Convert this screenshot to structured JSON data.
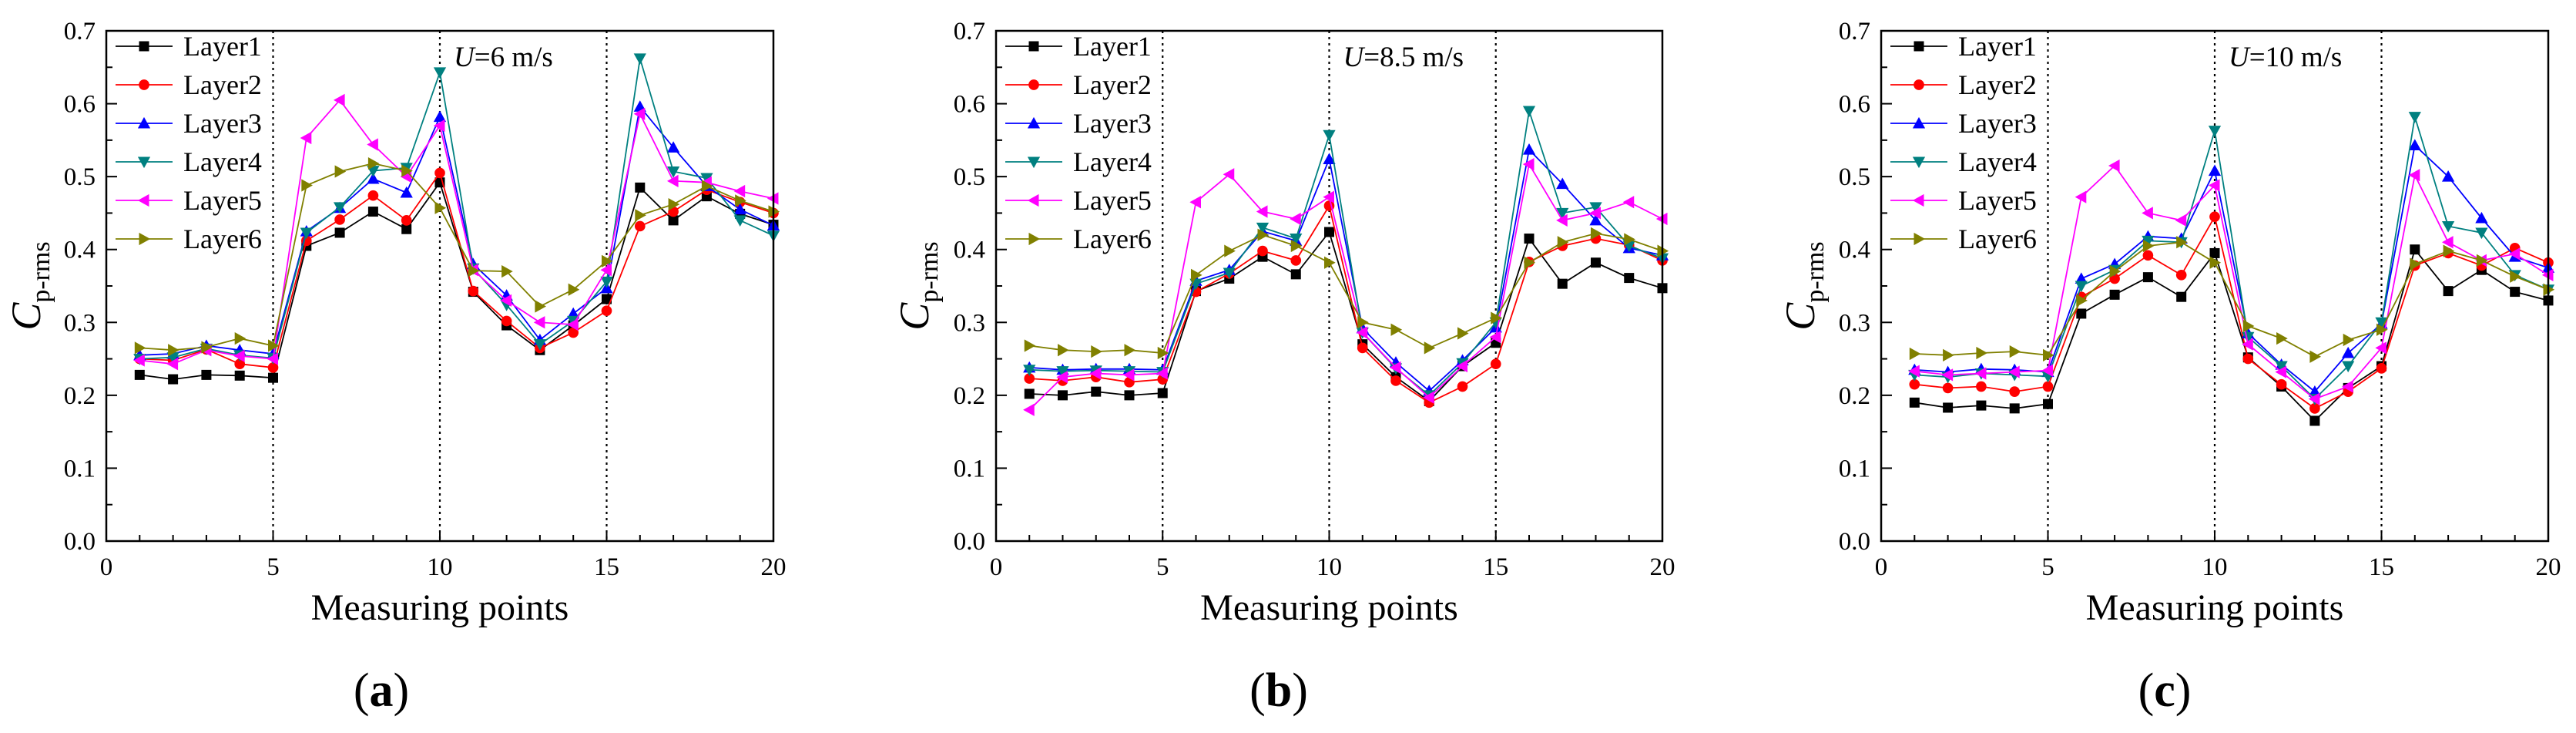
{
  "chart_data": [
    {
      "type": "line",
      "panel_label": "a",
      "annotation": {
        "var": "U",
        "text": "=6 m/s"
      },
      "xlabel": "Measuring points",
      "ylabel": {
        "main": "C",
        "sub": "p-rms"
      },
      "xlim": [
        0,
        20
      ],
      "ylim": [
        0.0,
        0.7
      ],
      "xticks": [
        0,
        5,
        10,
        15,
        20
      ],
      "yticks": [
        "0.0",
        "0.1",
        "0.2",
        "0.3",
        "0.4",
        "0.5",
        "0.6",
        "0.7"
      ],
      "vlines": [
        5,
        10,
        15
      ],
      "legend_position": "top-left",
      "x": [
        1,
        2,
        3,
        4,
        5,
        6,
        7,
        8,
        9,
        10,
        11,
        12,
        13,
        14,
        15,
        16,
        17,
        18,
        19,
        20
      ],
      "series": [
        {
          "name": "Layer1",
          "values": [
            0.228,
            0.222,
            0.228,
            0.227,
            0.224,
            0.405,
            0.423,
            0.452,
            0.428,
            0.492,
            0.342,
            0.296,
            0.262,
            0.296,
            0.332,
            0.485,
            0.44,
            0.473,
            0.449,
            0.434
          ]
        },
        {
          "name": "Layer2",
          "values": [
            0.25,
            0.248,
            0.263,
            0.243,
            0.238,
            0.412,
            0.441,
            0.474,
            0.44,
            0.505,
            0.343,
            0.302,
            0.265,
            0.286,
            0.316,
            0.432,
            0.452,
            0.482,
            0.465,
            0.45
          ]
        },
        {
          "name": "Layer3",
          "values": [
            0.255,
            0.257,
            0.268,
            0.262,
            0.257,
            0.425,
            0.457,
            0.497,
            0.478,
            0.582,
            0.38,
            0.337,
            0.276,
            0.312,
            0.347,
            0.596,
            0.54,
            0.487,
            0.455,
            0.433
          ]
        },
        {
          "name": "Layer4",
          "values": [
            0.25,
            0.252,
            0.264,
            0.255,
            0.251,
            0.423,
            0.458,
            0.508,
            0.512,
            0.643,
            0.374,
            0.324,
            0.27,
            0.302,
            0.356,
            0.662,
            0.507,
            0.498,
            0.44,
            0.419
          ]
        },
        {
          "name": "Layer5",
          "values": [
            0.248,
            0.243,
            0.262,
            0.254,
            0.25,
            0.553,
            0.605,
            0.544,
            0.5,
            0.57,
            0.372,
            0.33,
            0.3,
            0.297,
            0.372,
            0.586,
            0.494,
            0.492,
            0.48,
            0.47
          ]
        },
        {
          "name": "Layer6",
          "values": [
            0.265,
            0.262,
            0.266,
            0.278,
            0.268,
            0.488,
            0.507,
            0.518,
            0.508,
            0.457,
            0.371,
            0.37,
            0.322,
            0.345,
            0.384,
            0.447,
            0.462,
            0.487,
            0.467,
            0.452
          ]
        }
      ]
    },
    {
      "type": "line",
      "panel_label": "b",
      "annotation": {
        "var": "U",
        "text": "=8.5 m/s"
      },
      "xlabel": "Measuring points",
      "ylabel": {
        "main": "C",
        "sub": "p-rms"
      },
      "xlim": [
        0,
        20
      ],
      "ylim": [
        0.0,
        0.7
      ],
      "xticks": [
        0,
        5,
        10,
        15,
        20
      ],
      "yticks": [
        "0.0",
        "0.1",
        "0.2",
        "0.3",
        "0.4",
        "0.5",
        "0.6",
        "0.7"
      ],
      "vlines": [
        5,
        10,
        15
      ],
      "legend_position": "top-left",
      "x": [
        1,
        2,
        3,
        4,
        5,
        6,
        7,
        8,
        9,
        10,
        11,
        12,
        13,
        14,
        15,
        16,
        17,
        18,
        19,
        20
      ],
      "series": [
        {
          "name": "Layer1",
          "values": [
            0.202,
            0.2,
            0.205,
            0.2,
            0.203,
            0.343,
            0.36,
            0.39,
            0.366,
            0.424,
            0.27,
            0.225,
            0.192,
            0.24,
            0.272,
            0.415,
            0.353,
            0.382,
            0.361,
            0.347
          ]
        },
        {
          "name": "Layer2",
          "values": [
            0.223,
            0.22,
            0.225,
            0.218,
            0.222,
            0.342,
            0.367,
            0.398,
            0.385,
            0.46,
            0.265,
            0.22,
            0.19,
            0.212,
            0.243,
            0.383,
            0.405,
            0.415,
            0.406,
            0.385
          ]
        },
        {
          "name": "Layer3",
          "values": [
            0.238,
            0.235,
            0.236,
            0.236,
            0.235,
            0.357,
            0.372,
            0.425,
            0.412,
            0.524,
            0.292,
            0.245,
            0.206,
            0.248,
            0.293,
            0.537,
            0.49,
            0.44,
            0.402,
            0.392
          ]
        },
        {
          "name": "Layer4",
          "values": [
            0.235,
            0.233,
            0.234,
            0.233,
            0.232,
            0.353,
            0.368,
            0.43,
            0.415,
            0.557,
            0.286,
            0.237,
            0.2,
            0.244,
            0.3,
            0.59,
            0.45,
            0.458,
            0.405,
            0.388
          ]
        },
        {
          "name": "Layer5",
          "values": [
            0.18,
            0.225,
            0.23,
            0.228,
            0.23,
            0.465,
            0.503,
            0.452,
            0.442,
            0.472,
            0.286,
            0.238,
            0.197,
            0.24,
            0.28,
            0.517,
            0.44,
            0.45,
            0.465,
            0.442
          ]
        },
        {
          "name": "Layer6",
          "values": [
            0.268,
            0.262,
            0.26,
            0.262,
            0.258,
            0.365,
            0.398,
            0.42,
            0.405,
            0.382,
            0.3,
            0.29,
            0.265,
            0.285,
            0.306,
            0.382,
            0.41,
            0.422,
            0.414,
            0.398
          ]
        }
      ]
    },
    {
      "type": "line",
      "panel_label": "c",
      "annotation": {
        "var": "U",
        "text": "=10 m/s"
      },
      "xlabel": "Measuring points",
      "ylabel": {
        "main": "C",
        "sub": "p-rms"
      },
      "xlim": [
        0,
        20
      ],
      "ylim": [
        0.0,
        0.7
      ],
      "xticks": [
        0,
        5,
        10,
        15,
        20
      ],
      "yticks": [
        "0.0",
        "0.1",
        "0.2",
        "0.3",
        "0.4",
        "0.5",
        "0.6",
        "0.7"
      ],
      "vlines": [
        5,
        10,
        15
      ],
      "legend_position": "top-left",
      "x": [
        1,
        2,
        3,
        4,
        5,
        6,
        7,
        8,
        9,
        10,
        11,
        12,
        13,
        14,
        15,
        16,
        17,
        18,
        19,
        20
      ],
      "series": [
        {
          "name": "Layer1",
          "values": [
            0.19,
            0.183,
            0.186,
            0.182,
            0.188,
            0.312,
            0.338,
            0.362,
            0.335,
            0.395,
            0.252,
            0.212,
            0.165,
            0.21,
            0.24,
            0.4,
            0.343,
            0.372,
            0.342,
            0.33
          ]
        },
        {
          "name": "Layer2",
          "values": [
            0.215,
            0.21,
            0.212,
            0.205,
            0.212,
            0.335,
            0.36,
            0.392,
            0.365,
            0.445,
            0.25,
            0.215,
            0.182,
            0.205,
            0.237,
            0.378,
            0.395,
            0.378,
            0.402,
            0.382
          ]
        },
        {
          "name": "Layer3",
          "values": [
            0.235,
            0.232,
            0.236,
            0.235,
            0.232,
            0.36,
            0.38,
            0.418,
            0.415,
            0.508,
            0.285,
            0.242,
            0.205,
            0.258,
            0.298,
            0.543,
            0.5,
            0.443,
            0.39,
            0.375
          ]
        },
        {
          "name": "Layer4",
          "values": [
            0.228,
            0.225,
            0.23,
            0.228,
            0.226,
            0.35,
            0.372,
            0.412,
            0.41,
            0.563,
            0.28,
            0.24,
            0.195,
            0.24,
            0.3,
            0.582,
            0.432,
            0.423,
            0.365,
            0.345
          ]
        },
        {
          "name": "Layer5",
          "values": [
            0.233,
            0.228,
            0.23,
            0.232,
            0.234,
            0.472,
            0.515,
            0.45,
            0.44,
            0.488,
            0.27,
            0.232,
            0.195,
            0.212,
            0.265,
            0.502,
            0.41,
            0.385,
            0.394,
            0.365
          ]
        },
        {
          "name": "Layer6",
          "values": [
            0.257,
            0.255,
            0.258,
            0.26,
            0.255,
            0.33,
            0.37,
            0.405,
            0.41,
            0.382,
            0.295,
            0.278,
            0.253,
            0.276,
            0.29,
            0.38,
            0.398,
            0.385,
            0.363,
            0.345
          ]
        }
      ]
    }
  ],
  "series_styles": [
    {
      "color": "#000000",
      "marker": "square"
    },
    {
      "color": "#ff0000",
      "marker": "circle"
    },
    {
      "color": "#0000ff",
      "marker": "triangle-up"
    },
    {
      "color": "#008080",
      "marker": "triangle-down"
    },
    {
      "color": "#ff00ff",
      "marker": "triangle-left"
    },
    {
      "color": "#808000",
      "marker": "triangle-right"
    }
  ]
}
